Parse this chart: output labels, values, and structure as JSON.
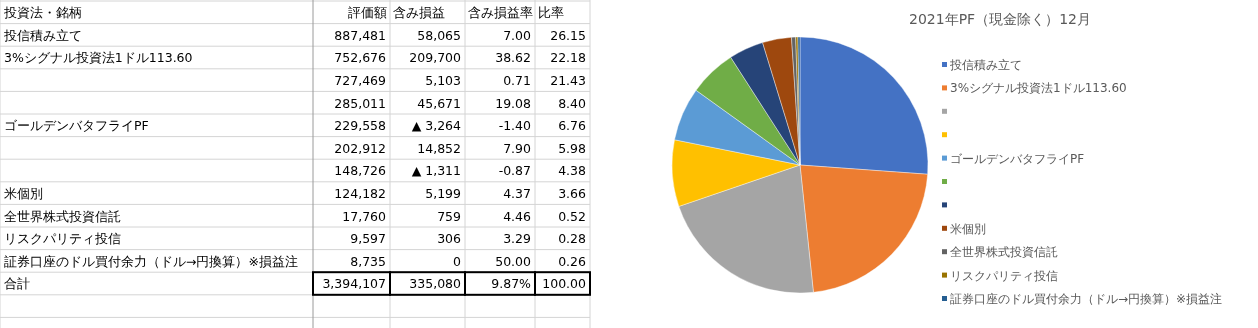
{
  "chart_data": [
    {
      "type": "other",
      "ylabel": "投資法・銘柄",
      "categories": [
        "評価額",
        "含み損益",
        "含み損益率",
        "比率"
      ],
      "y_categories": [
        "投信積み立て",
        "3%シグナル投資法1ドル113.60",
        null,
        null,
        "ゴールデンバタフライPF",
        null,
        null,
        "米個別",
        "全世界株式投資信託",
        "リスクパリティ投信",
        "証券口座のドル買付余力（ドル→円換算）※損益注",
        "合計"
      ],
      "cells": [
        [
          "887,481",
          "58,065",
          "7.00",
          "26.15"
        ],
        [
          "752,676",
          "209,700",
          "38.62",
          "22.18"
        ],
        [
          "727,469",
          "5,103",
          "0.71",
          "21.43"
        ],
        [
          "285,011",
          "45,671",
          "19.08",
          "8.40"
        ],
        [
          "229,558",
          "▲ 3,264",
          "-1.40",
          "6.76"
        ],
        [
          "202,912",
          "14,852",
          "7.90",
          "5.98"
        ],
        [
          "148,726",
          "▲ 1,311",
          "-0.87",
          "4.38"
        ],
        [
          "124,182",
          "5,199",
          "4.37",
          "3.66"
        ],
        [
          "17,760",
          "759",
          "4.46",
          "0.52"
        ],
        [
          "9,597",
          "306",
          "3.29",
          "0.28"
        ],
        [
          "8,735",
          "0",
          "50.00",
          "0.26"
        ],
        [
          "3,394,107",
          "335,080",
          "9.87%",
          "100.00"
        ]
      ]
    },
    {
      "type": "pie",
      "title": "2021年PF（現金除く）12月",
      "legend": "right",
      "categories": [
        "投信積み立て",
        "3%シグナル投資法1ドル113.60",
        null,
        null,
        "ゴールデンバタフライPF",
        null,
        null,
        "米個別",
        "全世界株式投資信託",
        "リスクパリティ投信",
        "証券口座のドル買付余力（ドル→円換算）※損益注"
      ],
      "values": [
        26.15,
        22.18,
        21.43,
        8.4,
        6.76,
        5.98,
        4.38,
        3.66,
        0.52,
        0.28,
        0.26
      ],
      "colors": [
        "#4472c4",
        "#ed7d31",
        "#a5a5a5",
        "#ffc000",
        "#5b9bd5",
        "#70ad47",
        "#264478",
        "#9e480e",
        "#636363",
        "#997300",
        "#255e91"
      ]
    }
  ]
}
